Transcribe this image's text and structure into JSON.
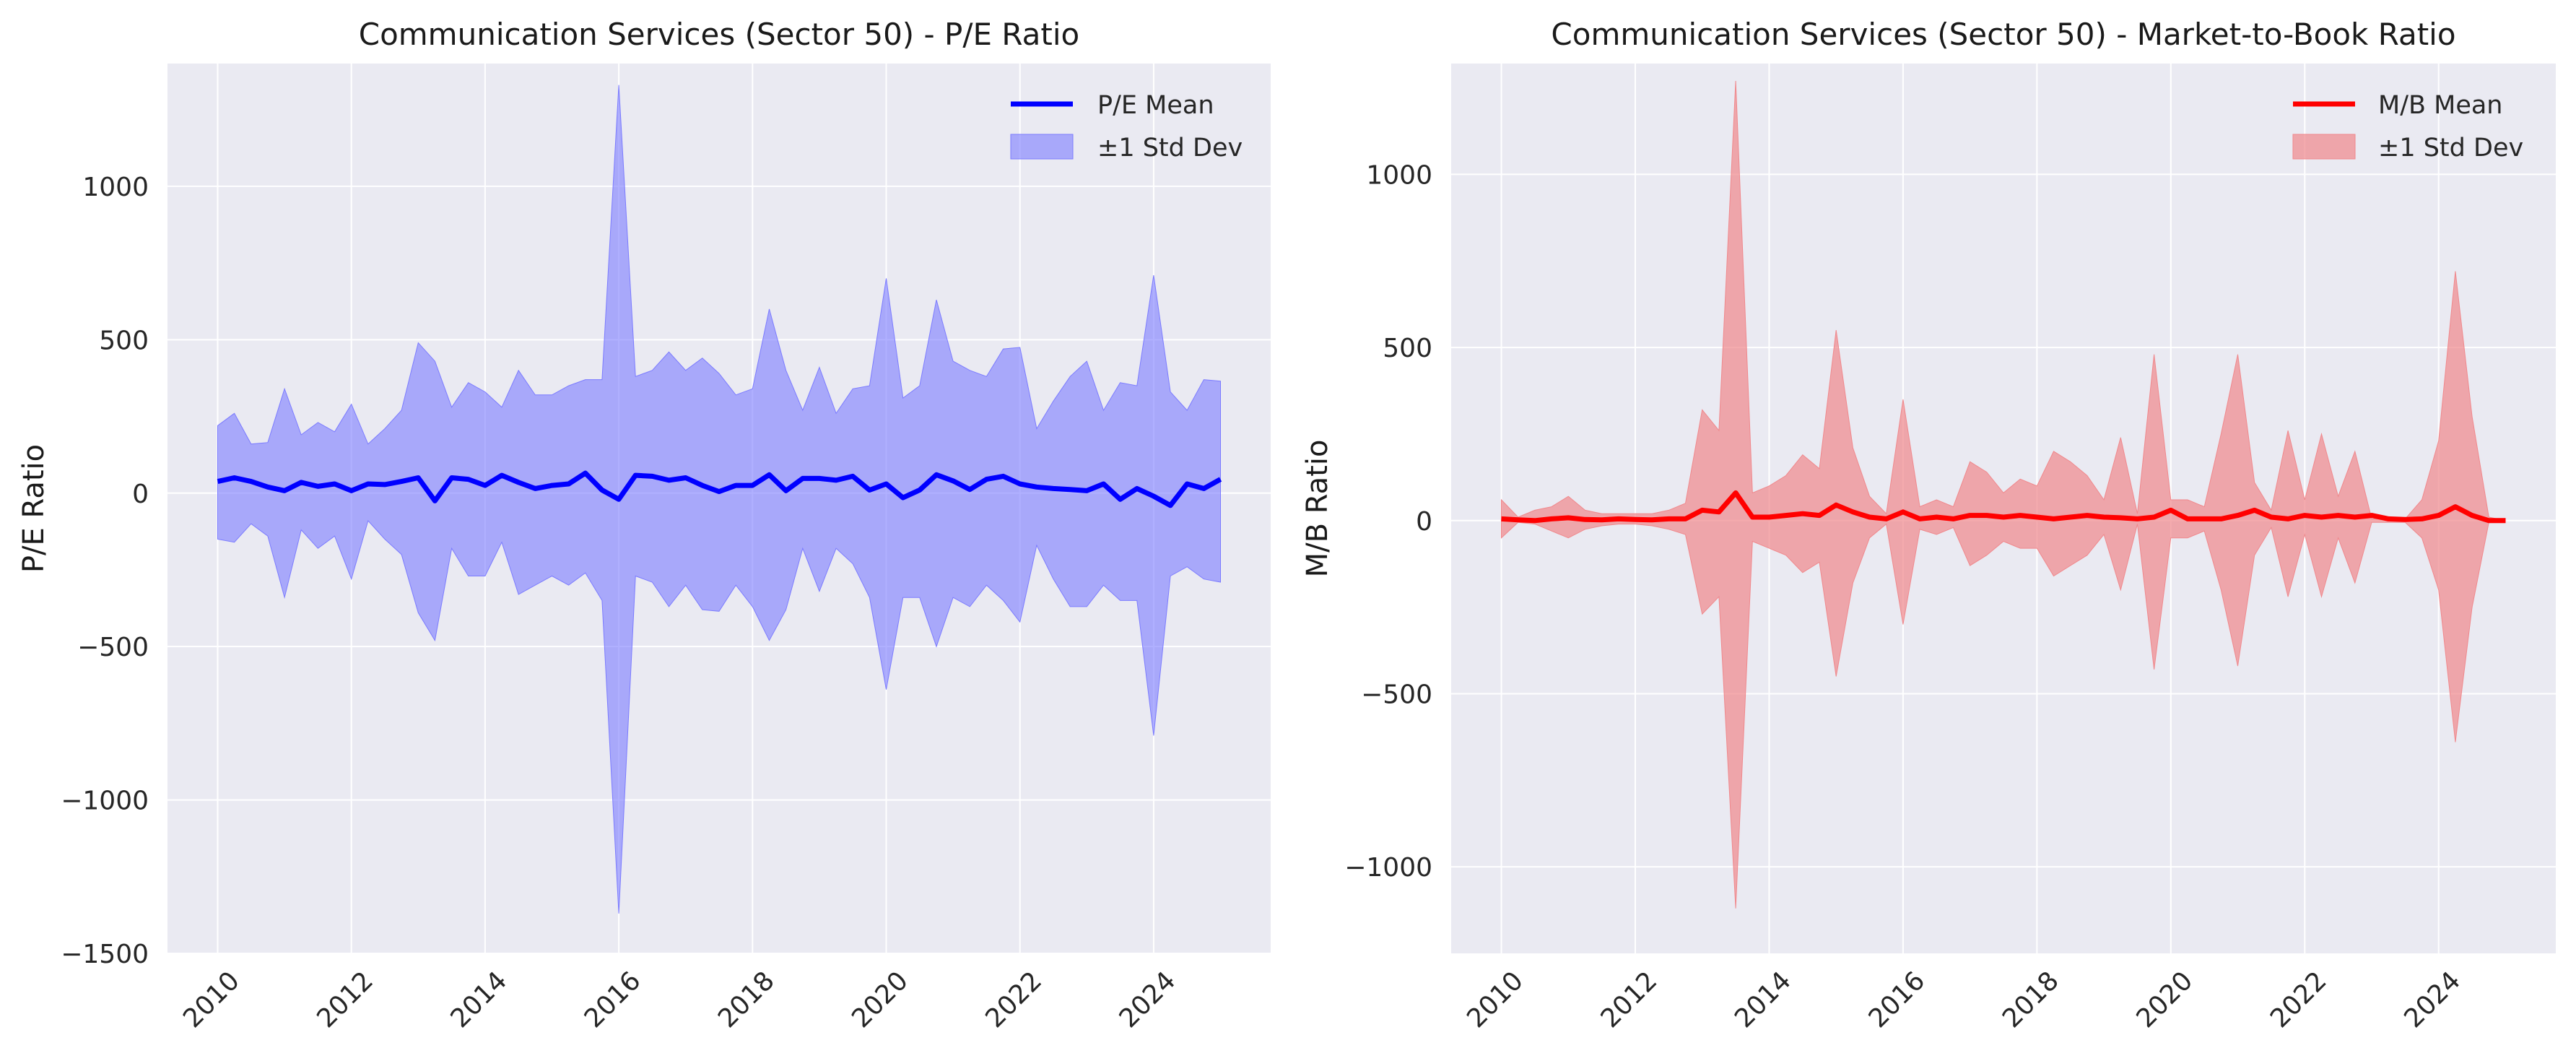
{
  "chart_data": [
    {
      "type": "area",
      "title": "Communication Services (Sector 50) - P/E Ratio",
      "xlabel": "",
      "ylabel": "P/E Ratio",
      "xlim": [
        2009.25,
        2025.75
      ],
      "ylim": [
        -1500,
        1400
      ],
      "xticks": [
        2010,
        2012,
        2014,
        2016,
        2018,
        2020,
        2022,
        2024
      ],
      "xtick_labels": [
        "2010",
        "2012",
        "2014",
        "2016",
        "2018",
        "2020",
        "2022",
        "2024"
      ],
      "yticks": [
        -1500,
        -1000,
        -500,
        0,
        500,
        1000
      ],
      "ytick_labels": [
        "−1500",
        "−1000",
        "−500",
        "0",
        "500",
        "1000"
      ],
      "grid": true,
      "legend_position": "top-right",
      "colors": {
        "line": "#0000ff",
        "band": "#7b7bff",
        "background": "#eaeaf2"
      },
      "series": [
        {
          "name": "P/E Mean",
          "x": [
            2010,
            2010.25,
            2010.5,
            2010.75,
            2011,
            2011.25,
            2011.5,
            2011.75,
            2012,
            2012.25,
            2012.5,
            2012.75,
            2013,
            2013.25,
            2013.5,
            2013.75,
            2014,
            2014.25,
            2014.5,
            2014.75,
            2015,
            2015.25,
            2015.5,
            2015.75,
            2016,
            2016.25,
            2016.5,
            2016.75,
            2017,
            2017.25,
            2017.5,
            2017.75,
            2018,
            2018.25,
            2018.5,
            2018.75,
            2019,
            2019.25,
            2019.5,
            2019.75,
            2020,
            2020.25,
            2020.5,
            2020.75,
            2021,
            2021.25,
            2021.5,
            2021.75,
            2022,
            2022.25,
            2022.5,
            2022.75,
            2023,
            2023.25,
            2023.5,
            2023.75,
            2024,
            2024.25,
            2024.5,
            2024.75,
            2025
          ],
          "values": [
            38,
            50,
            38,
            20,
            8,
            35,
            22,
            30,
            8,
            30,
            28,
            38,
            50,
            -25,
            50,
            45,
            25,
            58,
            35,
            15,
            25,
            30,
            65,
            10,
            -20,
            58,
            55,
            42,
            50,
            25,
            5,
            25,
            25,
            60,
            8,
            48,
            48,
            42,
            55,
            10,
            30,
            -15,
            10,
            60,
            40,
            12,
            45,
            55,
            30,
            20,
            15,
            12,
            8,
            30,
            -20,
            15,
            -10,
            -40,
            30,
            15,
            45
          ],
          "lower": [
            -150,
            -160,
            -100,
            -140,
            -340,
            -120,
            -180,
            -140,
            -280,
            -90,
            -150,
            -200,
            -390,
            -480,
            -180,
            -270,
            -270,
            -160,
            -330,
            -300,
            -270,
            -300,
            -260,
            -350,
            -1370,
            -270,
            -290,
            -370,
            -300,
            -380,
            -385,
            -300,
            -370,
            -480,
            -380,
            -180,
            -320,
            -180,
            -230,
            -340,
            -640,
            -340,
            -340,
            -500,
            -340,
            -370,
            -300,
            -350,
            -420,
            -170,
            -280,
            -370,
            -370,
            -300,
            -350,
            -350,
            -790,
            -270,
            -240,
            -280,
            -290
          ],
          "upper": [
            220,
            260,
            160,
            165,
            340,
            190,
            230,
            200,
            290,
            160,
            210,
            270,
            490,
            430,
            280,
            360,
            330,
            280,
            400,
            320,
            320,
            350,
            370,
            370,
            1330,
            380,
            400,
            460,
            400,
            440,
            390,
            320,
            340,
            600,
            400,
            270,
            410,
            260,
            340,
            350,
            700,
            310,
            350,
            630,
            430,
            400,
            380,
            470,
            475,
            210,
            300,
            380,
            430,
            270,
            360,
            350,
            710,
            330,
            270,
            370,
            365
          ]
        }
      ],
      "band_label": "±1 Std Dev"
    },
    {
      "type": "area",
      "title": "Communication Services (Sector 50) - Market-to-Book Ratio",
      "xlabel": "",
      "ylabel": "M/B Ratio",
      "xlim": [
        2009.25,
        2025.75
      ],
      "ylim": [
        -1250,
        1320
      ],
      "xticks": [
        2010,
        2012,
        2014,
        2016,
        2018,
        2020,
        2022,
        2024
      ],
      "xtick_labels": [
        "2010",
        "2012",
        "2014",
        "2016",
        "2018",
        "2020",
        "2022",
        "2024"
      ],
      "yticks": [
        -1000,
        -500,
        0,
        500,
        1000
      ],
      "ytick_labels": [
        "−1000",
        "−500",
        "0",
        "500",
        "1000"
      ],
      "grid": true,
      "legend_position": "top-right",
      "colors": {
        "line": "#ff0000",
        "band": "#f0888c",
        "background": "#eaeaf2"
      },
      "series": [
        {
          "name": "M/B Mean",
          "x": [
            2010,
            2010.25,
            2010.5,
            2010.75,
            2011,
            2011.25,
            2011.5,
            2011.75,
            2012,
            2012.25,
            2012.5,
            2012.75,
            2013,
            2013.25,
            2013.5,
            2013.75,
            2014,
            2014.25,
            2014.5,
            2014.75,
            2015,
            2015.25,
            2015.5,
            2015.75,
            2016,
            2016.25,
            2016.5,
            2016.75,
            2017,
            2017.25,
            2017.5,
            2017.75,
            2018,
            2018.25,
            2018.5,
            2018.75,
            2019,
            2019.25,
            2019.5,
            2019.75,
            2020,
            2020.25,
            2020.5,
            2020.75,
            2021,
            2021.25,
            2021.5,
            2021.75,
            2022,
            2022.25,
            2022.5,
            2022.75,
            2023,
            2023.25,
            2023.5,
            2023.75,
            2024,
            2024.25,
            2024.5,
            2024.75,
            2025
          ],
          "values": [
            5,
            2,
            0,
            5,
            8,
            3,
            2,
            5,
            3,
            2,
            5,
            5,
            30,
            25,
            80,
            10,
            10,
            15,
            20,
            15,
            45,
            25,
            10,
            5,
            25,
            5,
            10,
            5,
            15,
            15,
            10,
            15,
            10,
            5,
            10,
            15,
            10,
            8,
            5,
            10,
            30,
            5,
            5,
            5,
            15,
            30,
            10,
            5,
            15,
            10,
            15,
            10,
            15,
            5,
            3,
            5,
            15,
            40,
            15,
            0,
            0
          ],
          "lower": [
            -50,
            -5,
            -10,
            -30,
            -50,
            -25,
            -15,
            -10,
            -10,
            -15,
            -25,
            -40,
            -270,
            -220,
            -1120,
            -60,
            -80,
            -100,
            -150,
            -120,
            -450,
            -180,
            -50,
            -10,
            -300,
            -25,
            -40,
            -20,
            -130,
            -100,
            -60,
            -80,
            -80,
            -160,
            -130,
            -100,
            -40,
            -200,
            -10,
            -430,
            -50,
            -50,
            -30,
            -200,
            -420,
            -100,
            -20,
            -220,
            -40,
            -220,
            -50,
            -180,
            -5,
            -5,
            -5,
            -50,
            -200,
            -640,
            -250,
            -5,
            0
          ],
          "upper": [
            60,
            10,
            30,
            40,
            70,
            30,
            20,
            20,
            20,
            20,
            30,
            50,
            320,
            260,
            1270,
            80,
            100,
            130,
            190,
            150,
            550,
            210,
            70,
            20,
            350,
            40,
            60,
            40,
            170,
            140,
            80,
            120,
            100,
            200,
            170,
            130,
            60,
            240,
            20,
            480,
            60,
            60,
            40,
            250,
            480,
            110,
            30,
            260,
            60,
            250,
            70,
            200,
            5,
            5,
            5,
            60,
            230,
            720,
            300,
            10,
            0
          ]
        }
      ],
      "band_label": "±1 Std Dev"
    }
  ]
}
